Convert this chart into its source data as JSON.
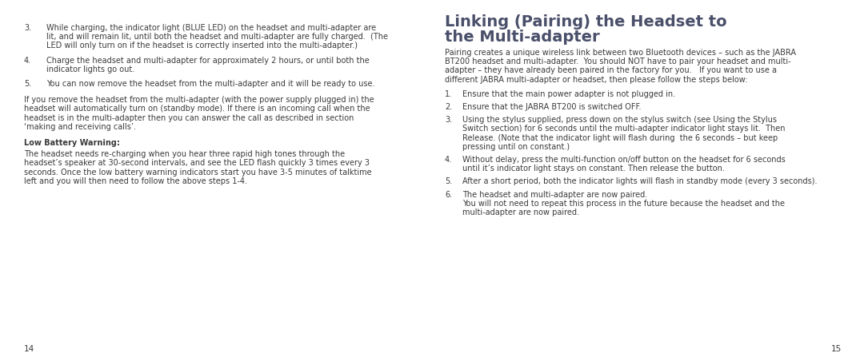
{
  "bg_color": "#ffffff",
  "text_color": "#3a3a3a",
  "title_color": "#4a4f6a",
  "page_num_left": "14",
  "page_num_right": "15",
  "left_items": [
    {
      "type": "num",
      "num": "3.",
      "lines": [
        "While charging, the indicator light (BLUE LED) on the headset and multi-adapter are",
        "lit, and will remain lit, until both the headset and multi-adapter are fully charged.  (The",
        "LED will only turn on if the headset is correctly inserted into the multi-adapter.)"
      ]
    },
    {
      "type": "num",
      "num": "4.",
      "lines": [
        "Charge the headset and multi-adapter for approximately 2 hours, or until both the",
        "indicator lights go out."
      ]
    },
    {
      "type": "num",
      "num": "5.",
      "lines": [
        "You can now remove the headset from the multi-adapter and it will be ready to use."
      ]
    },
    {
      "type": "para",
      "lines": [
        "If you remove the headset from the multi-adapter (with the power supply plugged in) the",
        "headset will automatically turn on (standby mode). If there is an incoming call when the",
        "headset is in the multi-adapter then you can answer the call as described in section",
        "‘making and receiving calls’."
      ]
    },
    {
      "type": "bold_head",
      "text": "Low Battery Warning:"
    },
    {
      "type": "para",
      "lines": [
        "The headset needs re-charging when you hear three rapid high tones through the",
        "headset’s speaker at 30-second intervals, and see the LED flash quickly 3 times every 3",
        "seconds. Once the low battery warning indicators start you have 3-5 minutes of talktime",
        "left and you will then need to follow the above steps 1-4."
      ]
    }
  ],
  "right_title_line1": "Linking (Pairing) the Headset to",
  "right_title_line2": "the Multi-adapter",
  "right_intro": [
    "Pairing creates a unique wireless link between two Bluetooth devices – such as the JABRA",
    "BT200 headset and multi-adapter.  You should NOT have to pair your headset and multi-",
    "adapter – they have already been paired in the factory for you.   If you want to use a",
    "different JABRA multi-adapter or headset, then please follow the steps below:"
  ],
  "right_items": [
    {
      "num": "1.",
      "lines": [
        "Ensure that the main power adapter is not plugged in."
      ]
    },
    {
      "num": "2.",
      "lines": [
        "Ensure that the JABRA BT200 is switched OFF."
      ]
    },
    {
      "num": "3.",
      "lines": [
        "Using the stylus supplied, press down on the stylus switch (see Using the Stylus",
        "Switch section) for 6 seconds until the multi-adapter indicator light stays lit.  Then",
        "Release. (Note that the indicator light will flash during  the 6 seconds – but keep",
        "pressing until on constant.)"
      ]
    },
    {
      "num": "4.",
      "lines": [
        "Without delay, press the multi-function on/off button on the headset for 6 seconds",
        "until it’s indicator light stays on constant. Then release the button."
      ]
    },
    {
      "num": "5.",
      "lines": [
        "After a short period, both the indicator lights will flash in standby mode (every 3 seconds)."
      ]
    },
    {
      "num": "6.",
      "lines": [
        "The headset and multi-adapter are now paired.",
        "You will not need to repeat this process in the future because the headset and the",
        "multi-adapter are now paired."
      ]
    }
  ]
}
